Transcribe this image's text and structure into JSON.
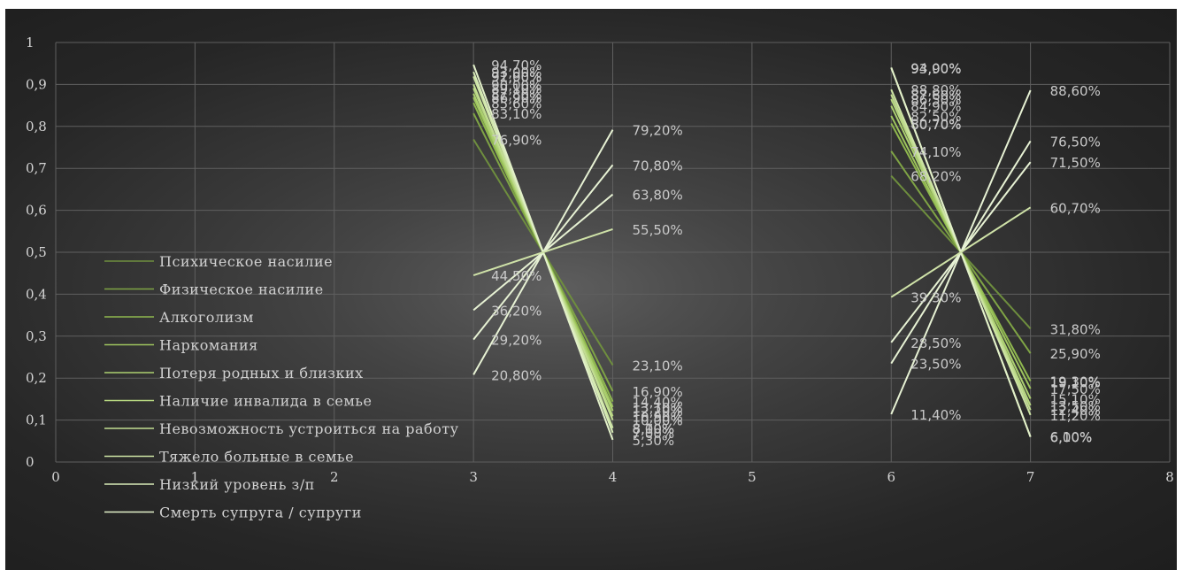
{
  "chart_data": {
    "type": "scatter",
    "title": "",
    "xlabel": "",
    "ylabel": "",
    "xlim": [
      0,
      8
    ],
    "ylim": [
      0,
      1
    ],
    "x_ticks": [
      "0",
      "1",
      "2",
      "3",
      "4",
      "5",
      "6",
      "7",
      "8"
    ],
    "y_ticks": [
      "0",
      "0,1",
      "0,2",
      "0,3",
      "0,4",
      "0,5",
      "0,6",
      "0,7",
      "0,8",
      "0,9",
      "1"
    ],
    "grid": true,
    "legend_position": "lower-left",
    "pivots": [
      {
        "x": 3.5,
        "y": 0.5
      },
      {
        "x": 6.5,
        "y": 0.5
      }
    ],
    "series": [
      {
        "name": "Психическое насилие",
        "color": "#6e8e3e",
        "group1": {
          "x0": 3,
          "y0": 0.769,
          "x1": 4,
          "y1": 0.231
        },
        "group2": {
          "x0": 6,
          "y0": 0.682,
          "x1": 7,
          "y1": 0.318
        }
      },
      {
        "name": "Физическое насилие",
        "color": "#7fa445",
        "group1": {
          "x0": 3,
          "y0": 0.831,
          "x1": 4,
          "y1": 0.169
        },
        "group2": {
          "x0": 6,
          "y0": 0.741,
          "x1": 7,
          "y1": 0.259
        }
      },
      {
        "name": "Алкоголизм",
        "color": "#8fb84e",
        "group1": {
          "x0": 3,
          "y0": 0.856,
          "x1": 4,
          "y1": 0.144
        },
        "group2": {
          "x0": 6,
          "y0": 0.807,
          "x1": 7,
          "y1": 0.193
        }
      },
      {
        "name": "Наркомания",
        "color": "#9ec45e",
        "group1": {
          "x0": 3,
          "y0": 0.869,
          "x1": 4,
          "y1": 0.131
        },
        "group2": {
          "x0": 6,
          "y0": 0.825,
          "x1": 7,
          "y1": 0.175
        }
      },
      {
        "name": "Потеря родных и близких",
        "color": "#acd070",
        "group1": {
          "x0": 3,
          "y0": 0.878,
          "x1": 4,
          "y1": 0.122
        },
        "group2": {
          "x0": 6,
          "y0": 0.849,
          "x1": 7,
          "y1": 0.151
        }
      },
      {
        "name": "Наличие инвалида в семье",
        "color": "#b7d780",
        "group1": {
          "x0": 3,
          "y0": 0.891,
          "x1": 4,
          "y1": 0.109
        },
        "group2": {
          "x0": 6,
          "y0": 0.865,
          "x1": 7,
          "y1": 0.135
        }
      },
      {
        "name": "Невозможность устроиться на работу",
        "color": "#c2dd92",
        "group1": {
          "x0": 3,
          "y0": 0.9,
          "x1": 4,
          "y1": 0.1
        },
        "group2": {
          "x0": 6,
          "y0": 0.876,
          "x1": 7,
          "y1": 0.124
        }
      },
      {
        "name": "Тяжело больные в семье",
        "color": "#cde4a4",
        "group1": {
          "x0": 3,
          "y0": 0.919,
          "x1": 4,
          "y1": 0.081
        },
        "group2": {
          "x0": 6,
          "y0": 0.888,
          "x1": 7,
          "y1": 0.112
        }
      },
      {
        "name": "Низкий уровень з/п",
        "color": "#d7ebb7",
        "group1": {
          "x0": 3,
          "y0": 0.93,
          "x1": 4,
          "y1": 0.07
        },
        "group2": {
          "x0": 6,
          "y0": 0.94,
          "x1": 7,
          "y1": 0.06
        }
      },
      {
        "name": "Смерть супруга / супруги",
        "color": "#e2f0c9",
        "group1": {
          "x0": 3,
          "y0": 0.947,
          "x1": 4,
          "y1": 0.053
        },
        "group2": {
          "x0": 6,
          "y0": 0.94,
          "x1": 7,
          "y1": 0.06
        }
      },
      {
        "name": "",
        "color": "#e7f2d4",
        "group1": {
          "x0": 3,
          "y0": 0.208,
          "x1": 4,
          "y1": 0.792
        },
        "group2": {
          "x0": 6,
          "y0": 0.114,
          "x1": 7,
          "y1": 0.886
        }
      },
      {
        "name": "",
        "color": "#e7f2d4",
        "group1": {
          "x0": 3,
          "y0": 0.292,
          "x1": 4,
          "y1": 0.708
        },
        "group2": {
          "x0": 6,
          "y0": 0.235,
          "x1": 7,
          "y1": 0.765
        }
      },
      {
        "name": "",
        "color": "#e7f2d4",
        "group1": {
          "x0": 3,
          "y0": 0.362,
          "x1": 4,
          "y1": 0.638
        },
        "group2": {
          "x0": 6,
          "y0": 0.285,
          "x1": 7,
          "y1": 0.715
        }
      },
      {
        "name": "",
        "color": "#cfe2a8",
        "group1": {
          "x0": 3,
          "y0": 0.445,
          "x1": 4,
          "y1": 0.555
        },
        "group2": {
          "x0": 6,
          "y0": 0.393,
          "x1": 7,
          "y1": 0.607
        }
      }
    ],
    "data_labels": [
      {
        "text": "94,70%",
        "x": 3,
        "y": 0.947
      },
      {
        "text": "93,00%",
        "x": 3,
        "y": 0.93
      },
      {
        "text": "92,00%",
        "x": 3,
        "y": 0.92
      },
      {
        "text": "91,90%",
        "x": 3,
        "y": 0.919
      },
      {
        "text": "90,00%",
        "x": 3,
        "y": 0.9
      },
      {
        "text": "89,10%",
        "x": 3,
        "y": 0.891
      },
      {
        "text": "87,80%",
        "x": 3,
        "y": 0.878
      },
      {
        "text": "86,90%",
        "x": 3,
        "y": 0.869
      },
      {
        "text": "85,60%",
        "x": 3,
        "y": 0.856
      },
      {
        "text": "83,10%",
        "x": 3,
        "y": 0.831
      },
      {
        "text": "76,90%",
        "x": 3,
        "y": 0.769
      },
      {
        "text": "44,50%",
        "x": 3,
        "y": 0.445
      },
      {
        "text": "36,20%",
        "x": 3,
        "y": 0.362
      },
      {
        "text": "29,20%",
        "x": 3,
        "y": 0.292
      },
      {
        "text": "20,80%",
        "x": 3,
        "y": 0.208
      },
      {
        "text": "79,20%",
        "x": 4,
        "y": 0.792
      },
      {
        "text": "70,80%",
        "x": 4,
        "y": 0.708
      },
      {
        "text": "63,80%",
        "x": 4,
        "y": 0.638
      },
      {
        "text": "55,50%",
        "x": 4,
        "y": 0.555
      },
      {
        "text": "23,10%",
        "x": 4,
        "y": 0.231
      },
      {
        "text": "16,90%",
        "x": 4,
        "y": 0.169
      },
      {
        "text": "14,40%",
        "x": 4,
        "y": 0.144
      },
      {
        "text": "13,10%",
        "x": 4,
        "y": 0.131
      },
      {
        "text": "12,20%",
        "x": 4,
        "y": 0.122
      },
      {
        "text": "10,90%",
        "x": 4,
        "y": 0.109
      },
      {
        "text": "10,00%",
        "x": 4,
        "y": 0.1
      },
      {
        "text": "8,10%",
        "x": 4,
        "y": 0.081
      },
      {
        "text": "8,00%",
        "x": 4,
        "y": 0.08
      },
      {
        "text": "7,00%",
        "x": 4,
        "y": 0.07
      },
      {
        "text": "5,30%",
        "x": 4,
        "y": 0.053
      },
      {
        "text": "94,00%",
        "x": 6,
        "y": 0.94
      },
      {
        "text": "93,90%",
        "x": 6,
        "y": 0.939
      },
      {
        "text": "88,80%",
        "x": 6,
        "y": 0.888
      },
      {
        "text": "87,60%",
        "x": 6,
        "y": 0.876
      },
      {
        "text": "86,50%",
        "x": 6,
        "y": 0.865
      },
      {
        "text": "84,90%",
        "x": 6,
        "y": 0.849
      },
      {
        "text": "82,50%",
        "x": 6,
        "y": 0.825
      },
      {
        "text": "80,70%",
        "x": 6,
        "y": 0.807
      },
      {
        "text": "80,70%",
        "x": 6,
        "y": 0.806
      },
      {
        "text": "74,10%",
        "x": 6,
        "y": 0.741
      },
      {
        "text": "68,20%",
        "x": 6,
        "y": 0.682
      },
      {
        "text": "39,30%",
        "x": 6,
        "y": 0.393
      },
      {
        "text": "28,50%",
        "x": 6,
        "y": 0.285
      },
      {
        "text": "23,50%",
        "x": 6,
        "y": 0.235
      },
      {
        "text": "11,40%",
        "x": 6,
        "y": 0.114
      },
      {
        "text": "88,60%",
        "x": 7,
        "y": 0.886
      },
      {
        "text": "76,50%",
        "x": 7,
        "y": 0.765
      },
      {
        "text": "71,50%",
        "x": 7,
        "y": 0.715
      },
      {
        "text": "60,70%",
        "x": 7,
        "y": 0.607
      },
      {
        "text": "31,80%",
        "x": 7,
        "y": 0.318
      },
      {
        "text": "25,90%",
        "x": 7,
        "y": 0.259
      },
      {
        "text": "19,30%",
        "x": 7,
        "y": 0.193
      },
      {
        "text": "19,10%",
        "x": 7,
        "y": 0.191
      },
      {
        "text": "17,50%",
        "x": 7,
        "y": 0.175
      },
      {
        "text": "15,10%",
        "x": 7,
        "y": 0.151
      },
      {
        "text": "13,50%",
        "x": 7,
        "y": 0.135
      },
      {
        "text": "12,40%",
        "x": 7,
        "y": 0.124
      },
      {
        "text": "11,20%",
        "x": 7,
        "y": 0.112
      },
      {
        "text": "6,10%",
        "x": 7,
        "y": 0.061
      },
      {
        "text": "6,00%",
        "x": 7,
        "y": 0.06
      }
    ]
  }
}
